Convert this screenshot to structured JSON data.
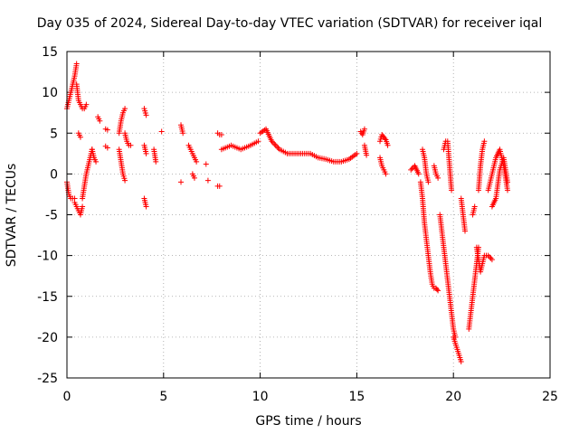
{
  "chart_data": {
    "type": "scatter",
    "title": "Day 035 of 2024, Sidereal Day-to-day VTEC variation (SDTVAR) for receiver iqal",
    "xlabel": "GPS time / hours",
    "ylabel": "SDTVAR / TECUs",
    "xlim": [
      0,
      25
    ],
    "ylim": [
      -25,
      15
    ],
    "xticks": [
      0,
      5,
      10,
      15,
      20,
      25
    ],
    "yticks": [
      -25,
      -20,
      -15,
      -10,
      -5,
      0,
      5,
      10,
      15
    ],
    "grid": true,
    "marker": "+",
    "marker_color": "#ff0000",
    "segments": [
      {
        "x": [
          0.0,
          0.1,
          0.2,
          0.3,
          0.4
        ],
        "y": [
          -1,
          -2.5,
          -3,
          -3,
          -3
        ]
      },
      {
        "x": [
          0.4,
          0.5,
          0.6,
          0.7,
          0.8
        ],
        "y": [
          -3.5,
          -4,
          -4.5,
          -5,
          -4
        ]
      },
      {
        "x": [
          0.8,
          0.9,
          1.0,
          1.1,
          1.2,
          1.3
        ],
        "y": [
          -3,
          -1.5,
          0,
          1,
          2,
          3
        ]
      },
      {
        "x": [
          0.0,
          0.1,
          0.2,
          0.3,
          0.4,
          0.5
        ],
        "y": [
          8,
          9,
          10,
          11,
          12,
          13.5
        ]
      },
      {
        "x": [
          0.5,
          0.6,
          0.7,
          0.8,
          0.9,
          1.0
        ],
        "y": [
          11,
          9,
          8.5,
          8,
          8,
          8.5
        ]
      },
      {
        "x": [
          0.6,
          0.7
        ],
        "y": [
          5,
          4.5
        ]
      },
      {
        "x": [
          1.3,
          1.4,
          1.5
        ],
        "y": [
          3,
          2,
          1.5
        ]
      },
      {
        "x": [
          1.6,
          1.7
        ],
        "y": [
          7,
          6.5
        ]
      },
      {
        "x": [
          2.0,
          2.1
        ],
        "y": [
          5.5,
          5.4
        ]
      },
      {
        "x": [
          2.0,
          2.1
        ],
        "y": [
          3.4,
          3.2
        ]
      },
      {
        "x": [
          2.7,
          2.8,
          2.9,
          3.0
        ],
        "y": [
          5,
          6.5,
          7.5,
          8
        ]
      },
      {
        "x": [
          2.7,
          2.8,
          2.9,
          3.0
        ],
        "y": [
          3,
          1.5,
          0,
          -0.8
        ]
      },
      {
        "x": [
          3.0,
          3.1,
          3.2,
          3.3
        ],
        "y": [
          5,
          4,
          3.5,
          3.5
        ]
      },
      {
        "x": [
          4.0,
          4.1
        ],
        "y": [
          8,
          7.2
        ]
      },
      {
        "x": [
          4.0,
          4.1
        ],
        "y": [
          3.5,
          2.5
        ]
      },
      {
        "x": [
          4.0,
          4.1
        ],
        "y": [
          -3,
          -4
        ]
      },
      {
        "x": [
          4.5,
          4.6
        ],
        "y": [
          3,
          1.5
        ]
      },
      {
        "x": [
          4.9
        ],
        "y": [
          5.2
        ]
      },
      {
        "x": [
          5.9,
          6.0
        ],
        "y": [
          6,
          5
        ]
      },
      {
        "x": [
          5.9
        ],
        "y": [
          -1
        ]
      },
      {
        "x": [
          6.3,
          6.4,
          6.5,
          6.6,
          6.7
        ],
        "y": [
          3.5,
          3,
          2.5,
          2,
          1.5
        ]
      },
      {
        "x": [
          6.5,
          6.6
        ],
        "y": [
          0,
          -0.5
        ]
      },
      {
        "x": [
          7.2
        ],
        "y": [
          1.2
        ]
      },
      {
        "x": [
          7.3
        ],
        "y": [
          -0.8
        ]
      },
      {
        "x": [
          7.8,
          7.9,
          8.0
        ],
        "y": [
          5,
          4.8,
          4.8
        ]
      },
      {
        "x": [
          7.8,
          7.9
        ],
        "y": [
          -1.5,
          -1.5
        ]
      },
      {
        "x": [
          8.0,
          8.5,
          9.0,
          9.5,
          9.9
        ],
        "y": [
          3,
          3.5,
          3,
          3.5,
          4
        ]
      },
      {
        "x": [
          10.0,
          10.3,
          10.6,
          11.0,
          11.4,
          11.8,
          12.2,
          12.6,
          13.0,
          13.4,
          13.8,
          14.2,
          14.6,
          15.0
        ],
        "y": [
          5,
          5.5,
          4,
          3,
          2.5,
          2.5,
          2.5,
          2.5,
          2,
          1.8,
          1.5,
          1.5,
          1.8,
          2.5
        ]
      },
      {
        "x": [
          15.2,
          15.3,
          15.4
        ],
        "y": [
          5.2,
          4.8,
          5.5
        ]
      },
      {
        "x": [
          15.4,
          15.5
        ],
        "y": [
          3.5,
          2.3
        ]
      },
      {
        "x": [
          16.2,
          16.3,
          16.4,
          16.5,
          16.6
        ],
        "y": [
          4,
          4.8,
          4.5,
          4.2,
          3.5
        ]
      },
      {
        "x": [
          16.2,
          16.3,
          16.4,
          16.5
        ],
        "y": [
          2,
          1,
          0.5,
          0
        ]
      },
      {
        "x": [
          17.8,
          18.0,
          18.2
        ],
        "y": [
          0.5,
          1,
          0
        ]
      },
      {
        "x": [
          18.3,
          18.4,
          18.5,
          18.6,
          18.7,
          18.8,
          18.9,
          19.0,
          19.1,
          19.2
        ],
        "y": [
          -1,
          -3,
          -6,
          -8,
          -10,
          -12,
          -13.5,
          -14,
          -14,
          -14.3
        ]
      },
      {
        "x": [
          18.4,
          18.5,
          18.6,
          18.7
        ],
        "y": [
          3,
          2,
          0,
          -1
        ]
      },
      {
        "x": [
          19.0,
          19.1,
          19.2
        ],
        "y": [
          1,
          0,
          -0.5
        ]
      },
      {
        "x": [
          19.3,
          19.4,
          19.5,
          19.6,
          19.7,
          19.8,
          19.9,
          20.0,
          20.1
        ],
        "y": [
          -5,
          -7,
          -9,
          -11,
          -13,
          -15,
          -17,
          -19,
          -20
        ]
      },
      {
        "x": [
          19.5,
          19.6,
          19.7,
          19.8,
          19.9
        ],
        "y": [
          3,
          4,
          4,
          1,
          -2
        ]
      },
      {
        "x": [
          20.0,
          20.2,
          20.4
        ],
        "y": [
          -20,
          -21.5,
          -23
        ]
      },
      {
        "x": [
          20.4,
          20.5,
          20.6
        ],
        "y": [
          -3,
          -5,
          -7
        ]
      },
      {
        "x": [
          20.8,
          20.9,
          21.0,
          21.1,
          21.2,
          21.3
        ],
        "y": [
          -19,
          -17,
          -15,
          -13,
          -11,
          -9
        ]
      },
      {
        "x": [
          21.0,
          21.1
        ],
        "y": [
          -5,
          -4
        ]
      },
      {
        "x": [
          21.2,
          21.4,
          21.6,
          21.8,
          22.0
        ],
        "y": [
          -9,
          -12,
          -10,
          -10,
          -10.5
        ]
      },
      {
        "x": [
          21.3,
          21.4,
          21.5,
          21.6
        ],
        "y": [
          -2,
          1,
          3,
          4
        ]
      },
      {
        "x": [
          21.8,
          22.0,
          22.2,
          22.4,
          22.6,
          22.8
        ],
        "y": [
          -2,
          0,
          2,
          3,
          1,
          -2
        ]
      },
      {
        "x": [
          22.0,
          22.2,
          22.4,
          22.6,
          22.8
        ],
        "y": [
          -4,
          -3,
          0.5,
          2,
          -1
        ]
      }
    ]
  }
}
